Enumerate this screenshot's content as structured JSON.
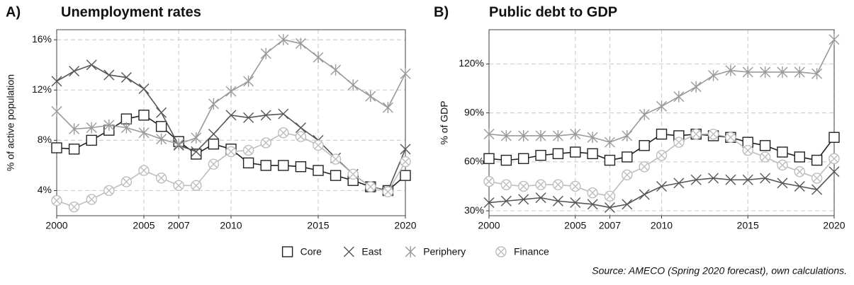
{
  "chart_data": [
    {
      "type": "line",
      "panel_label": "A)",
      "title": "Unemployment rates",
      "ylabel": "% of active population",
      "x": [
        2000,
        2001,
        2002,
        2003,
        2004,
        2005,
        2006,
        2007,
        2008,
        2009,
        2010,
        2011,
        2012,
        2013,
        2014,
        2015,
        2016,
        2017,
        2018,
        2019,
        2020
      ],
      "xlim": [
        2000,
        2020
      ],
      "xticks": [
        2000,
        2005,
        2007,
        2010,
        2015,
        2020
      ],
      "ylim": [
        2.0,
        16.8
      ],
      "yticks": [
        {
          "value": 4,
          "label": "4%"
        },
        {
          "value": 8,
          "label": "8%"
        },
        {
          "value": 12,
          "label": "12%"
        },
        {
          "value": 16,
          "label": "16%"
        }
      ],
      "grid": true,
      "series": [
        {
          "name": "Core",
          "color": "#222222",
          "values": [
            7.4,
            7.3,
            8.0,
            8.8,
            9.7,
            10.0,
            9.1,
            7.9,
            6.9,
            7.7,
            7.3,
            6.2,
            6.0,
            6.0,
            5.9,
            5.6,
            5.2,
            4.8,
            4.3,
            4.0,
            5.2
          ]
        },
        {
          "name": "East",
          "color": "#555555",
          "values": [
            12.7,
            13.5,
            14.0,
            13.2,
            13.0,
            12.1,
            10.2,
            7.6,
            7.1,
            8.5,
            10.0,
            9.8,
            10.0,
            10.1,
            9.0,
            8.0,
            6.6,
            5.3,
            4.3,
            4.0,
            7.3
          ]
        },
        {
          "name": "Periphery",
          "color": "#9a9a9a",
          "values": [
            10.3,
            8.9,
            9.0,
            9.2,
            9.0,
            8.6,
            8.1,
            7.7,
            8.2,
            10.9,
            11.9,
            12.7,
            14.9,
            16.0,
            15.7,
            14.6,
            13.6,
            12.4,
            11.5,
            10.6,
            13.3
          ]
        },
        {
          "name": "Finance",
          "color": "#bdbdbd",
          "values": [
            3.2,
            2.7,
            3.3,
            4.0,
            4.7,
            5.6,
            5.0,
            4.4,
            4.4,
            6.1,
            7.1,
            7.2,
            7.8,
            8.6,
            8.3,
            7.6,
            6.5,
            5.3,
            4.3,
            3.9,
            6.3
          ]
        }
      ]
    },
    {
      "type": "line",
      "panel_label": "B)",
      "title": "Public debt to GDP",
      "ylabel": "% of GDP",
      "x": [
        2000,
        2001,
        2002,
        2003,
        2004,
        2005,
        2006,
        2007,
        2008,
        2009,
        2010,
        2011,
        2012,
        2013,
        2014,
        2015,
        2016,
        2017,
        2018,
        2019,
        2020
      ],
      "xlim": [
        2000,
        2020
      ],
      "xticks": [
        2000,
        2005,
        2007,
        2010,
        2015,
        2020
      ],
      "ylim": [
        27,
        141
      ],
      "yticks": [
        {
          "value": 30,
          "label": "30%"
        },
        {
          "value": 60,
          "label": "60%"
        },
        {
          "value": 90,
          "label": "90%"
        },
        {
          "value": 120,
          "label": "120%"
        }
      ],
      "grid": true,
      "series": [
        {
          "name": "Core",
          "color": "#222222",
          "values": [
            62,
            61,
            62,
            64,
            65,
            66,
            65,
            61,
            63,
            70,
            77,
            76,
            77,
            76,
            75,
            72,
            70,
            66,
            63,
            61,
            75
          ]
        },
        {
          "name": "East",
          "color": "#555555",
          "values": [
            35,
            36,
            37,
            38,
            36,
            35,
            34,
            32,
            34,
            40,
            45,
            47,
            49,
            50,
            49,
            49,
            50,
            47,
            45,
            43,
            54
          ]
        },
        {
          "name": "Periphery",
          "color": "#9a9a9a",
          "values": [
            77,
            76,
            76,
            76,
            76,
            77,
            75,
            72,
            76,
            89,
            94,
            100,
            106,
            113,
            116,
            115,
            115,
            115,
            115,
            114,
            135
          ]
        },
        {
          "name": "Finance",
          "color": "#bdbdbd",
          "values": [
            48,
            46,
            45,
            46,
            46,
            45,
            41,
            39,
            52,
            57,
            64,
            72,
            77,
            77,
            75,
            67,
            63,
            58,
            54,
            50,
            62
          ]
        }
      ]
    }
  ],
  "source": "Source: AMECO (Spring 2020 forecast), own calculations."
}
